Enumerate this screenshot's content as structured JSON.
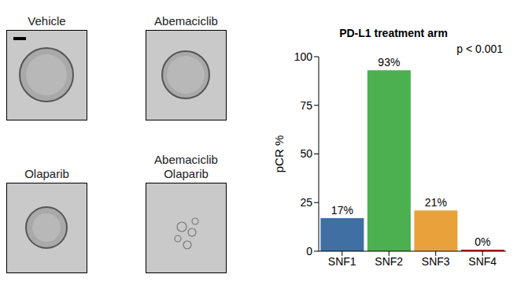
{
  "chart_data": {
    "type": "bar",
    "title": "PD-L1 treatment arm",
    "y_label": "pCR %",
    "annotation": "p < 0.001",
    "categories": [
      "SNF1",
      "SNF2",
      "SNF3",
      "SNF4"
    ],
    "values": [
      17,
      93,
      21,
      0
    ],
    "value_labels": [
      "17%",
      "93%",
      "21%",
      "0%"
    ],
    "colors": [
      "#3f6fa3",
      "#4caf50",
      "#e9a23b",
      "#e41a1c"
    ],
    "ylim": [
      0,
      100
    ],
    "yticks": [
      0,
      25,
      50,
      75,
      100
    ],
    "data_labels": true,
    "grid": false
  },
  "panels": [
    {
      "label": "Vehicle"
    },
    {
      "label": "Abemaciclib"
    },
    {
      "label": "Olaparib"
    },
    {
      "label": "Abemaciclib Olaparib"
    }
  ]
}
